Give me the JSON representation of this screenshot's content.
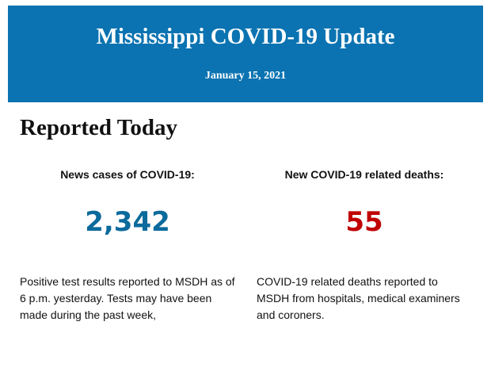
{
  "header": {
    "title": "Mississippi COVID-19 Update",
    "date": "January 15, 2021",
    "background_color": "#0b73b1"
  },
  "section": {
    "heading": "Reported Today"
  },
  "stats": {
    "cases": {
      "label": "News cases of COVID-19:",
      "value": "2,342",
      "color": "#0b6a9c",
      "description": "Positive test results reported to MSDH as of 6 p.m. yesterday. Tests may have been made during the past week,"
    },
    "deaths": {
      "label": "New COVID-19 related deaths:",
      "value": "55",
      "color": "#c00000",
      "description": "COVID-19 related deaths reported to MSDH from hospitals, medical examiners and coroners."
    }
  }
}
